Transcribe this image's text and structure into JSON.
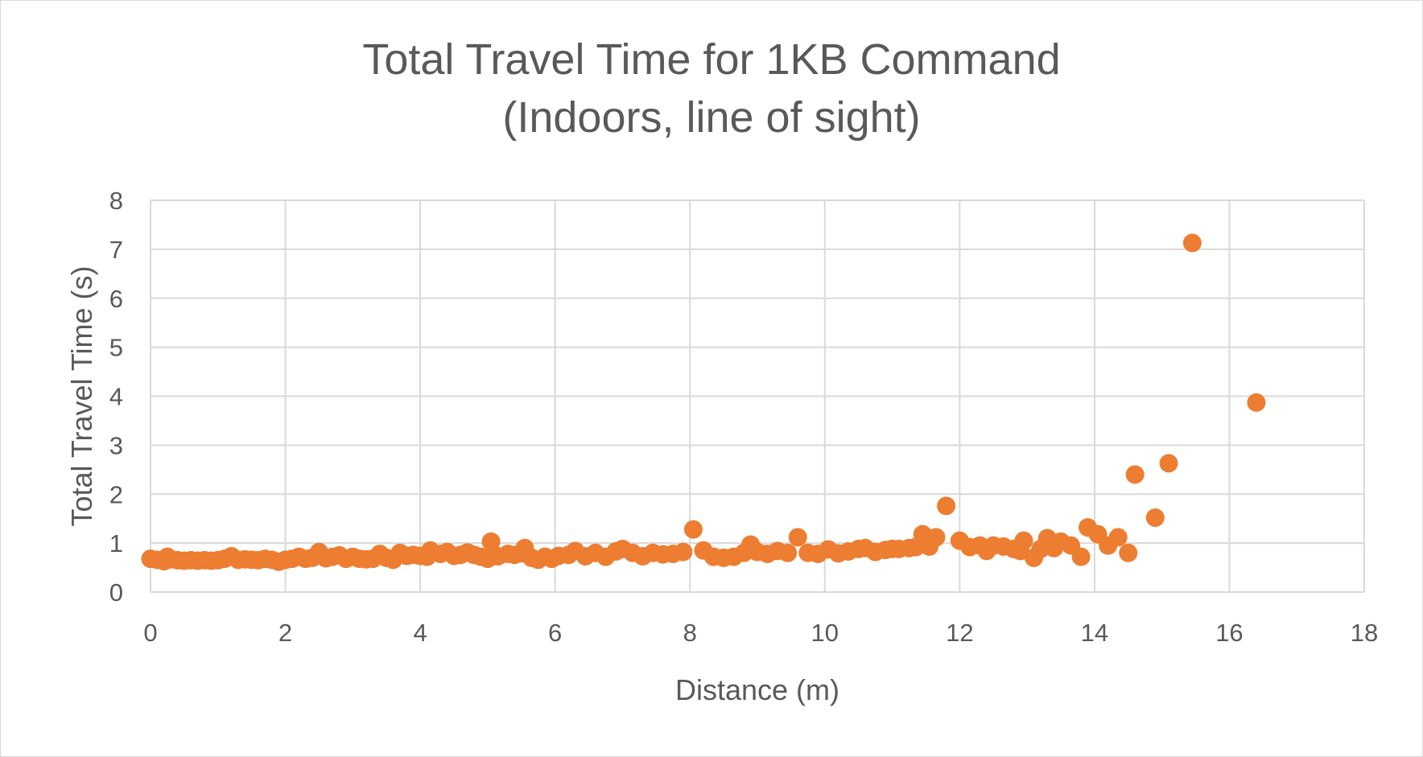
{
  "chart_data": {
    "type": "scatter",
    "title": "Total Travel Time for 1KB Command",
    "subtitle": "(Indoors, line of sight)",
    "xlabel": "Distance (m)",
    "ylabel": "Total Travel Time (s)",
    "xlim": [
      0,
      18
    ],
    "ylim": [
      0,
      8
    ],
    "xticks": [
      0,
      2,
      4,
      6,
      8,
      10,
      12,
      14,
      16,
      18
    ],
    "yticks": [
      0,
      1,
      2,
      3,
      4,
      5,
      6,
      7,
      8
    ],
    "grid": true,
    "legend": "none",
    "marker_color": "#ED7D31",
    "gridline_color": "#d9d9d9",
    "series": [
      {
        "points": [
          [
            0.0,
            0.68
          ],
          [
            0.1,
            0.66
          ],
          [
            0.2,
            0.63
          ],
          [
            0.25,
            0.72
          ],
          [
            0.3,
            0.67
          ],
          [
            0.4,
            0.65
          ],
          [
            0.5,
            0.64
          ],
          [
            0.6,
            0.65
          ],
          [
            0.7,
            0.64
          ],
          [
            0.8,
            0.65
          ],
          [
            0.9,
            0.64
          ],
          [
            1.0,
            0.65
          ],
          [
            1.1,
            0.68
          ],
          [
            1.2,
            0.73
          ],
          [
            1.3,
            0.66
          ],
          [
            1.4,
            0.67
          ],
          [
            1.5,
            0.66
          ],
          [
            1.6,
            0.65
          ],
          [
            1.7,
            0.68
          ],
          [
            1.8,
            0.66
          ],
          [
            1.9,
            0.62
          ],
          [
            2.0,
            0.66
          ],
          [
            2.1,
            0.68
          ],
          [
            2.2,
            0.72
          ],
          [
            2.3,
            0.68
          ],
          [
            2.4,
            0.7
          ],
          [
            2.5,
            0.82
          ],
          [
            2.6,
            0.69
          ],
          [
            2.7,
            0.72
          ],
          [
            2.8,
            0.75
          ],
          [
            2.9,
            0.68
          ],
          [
            3.0,
            0.72
          ],
          [
            3.1,
            0.68
          ],
          [
            3.2,
            0.67
          ],
          [
            3.3,
            0.68
          ],
          [
            3.4,
            0.78
          ],
          [
            3.5,
            0.7
          ],
          [
            3.6,
            0.66
          ],
          [
            3.7,
            0.8
          ],
          [
            3.8,
            0.74
          ],
          [
            3.9,
            0.76
          ],
          [
            4.0,
            0.74
          ],
          [
            4.1,
            0.72
          ],
          [
            4.15,
            0.85
          ],
          [
            4.3,
            0.78
          ],
          [
            4.4,
            0.82
          ],
          [
            4.5,
            0.74
          ],
          [
            4.6,
            0.76
          ],
          [
            4.7,
            0.81
          ],
          [
            4.8,
            0.76
          ],
          [
            4.9,
            0.72
          ],
          [
            5.0,
            0.68
          ],
          [
            5.05,
            1.03
          ],
          [
            5.15,
            0.73
          ],
          [
            5.3,
            0.78
          ],
          [
            5.4,
            0.76
          ],
          [
            5.5,
            0.79
          ],
          [
            5.55,
            0.9
          ],
          [
            5.65,
            0.7
          ],
          [
            5.75,
            0.66
          ],
          [
            5.85,
            0.72
          ],
          [
            5.95,
            0.68
          ],
          [
            6.05,
            0.74
          ],
          [
            6.2,
            0.76
          ],
          [
            6.3,
            0.84
          ],
          [
            6.45,
            0.73
          ],
          [
            6.6,
            0.8
          ],
          [
            6.75,
            0.72
          ],
          [
            6.9,
            0.83
          ],
          [
            7.0,
            0.88
          ],
          [
            7.15,
            0.8
          ],
          [
            7.3,
            0.73
          ],
          [
            7.45,
            0.8
          ],
          [
            7.6,
            0.77
          ],
          [
            7.75,
            0.78
          ],
          [
            7.9,
            0.82
          ],
          [
            8.05,
            1.28
          ],
          [
            8.2,
            0.85
          ],
          [
            8.35,
            0.72
          ],
          [
            8.5,
            0.7
          ],
          [
            8.65,
            0.72
          ],
          [
            8.8,
            0.8
          ],
          [
            8.9,
            0.97
          ],
          [
            9.0,
            0.82
          ],
          [
            9.15,
            0.78
          ],
          [
            9.3,
            0.84
          ],
          [
            9.45,
            0.8
          ],
          [
            9.6,
            1.12
          ],
          [
            9.75,
            0.8
          ],
          [
            9.9,
            0.78
          ],
          [
            10.05,
            0.87
          ],
          [
            10.2,
            0.79
          ],
          [
            10.35,
            0.83
          ],
          [
            10.5,
            0.88
          ],
          [
            10.6,
            0.9
          ],
          [
            10.75,
            0.82
          ],
          [
            10.9,
            0.86
          ],
          [
            11.0,
            0.88
          ],
          [
            11.1,
            0.88
          ],
          [
            11.25,
            0.9
          ],
          [
            11.35,
            0.92
          ],
          [
            11.45,
            1.18
          ],
          [
            11.55,
            0.93
          ],
          [
            11.65,
            1.12
          ],
          [
            11.8,
            1.76
          ],
          [
            12.0,
            1.05
          ],
          [
            12.15,
            0.92
          ],
          [
            12.3,
            0.95
          ],
          [
            12.4,
            0.84
          ],
          [
            12.5,
            0.95
          ],
          [
            12.65,
            0.93
          ],
          [
            12.8,
            0.88
          ],
          [
            12.9,
            0.84
          ],
          [
            12.95,
            1.05
          ],
          [
            13.1,
            0.7
          ],
          [
            13.2,
            0.88
          ],
          [
            13.3,
            1.1
          ],
          [
            13.4,
            0.9
          ],
          [
            13.5,
            1.03
          ],
          [
            13.65,
            0.95
          ],
          [
            13.8,
            0.72
          ],
          [
            13.9,
            1.32
          ],
          [
            14.05,
            1.18
          ],
          [
            14.2,
            0.95
          ],
          [
            14.35,
            1.12
          ],
          [
            14.5,
            0.8
          ],
          [
            14.6,
            2.4
          ],
          [
            14.9,
            1.52
          ],
          [
            15.1,
            2.63
          ],
          [
            15.45,
            7.13
          ],
          [
            16.4,
            3.87
          ]
        ]
      }
    ]
  }
}
